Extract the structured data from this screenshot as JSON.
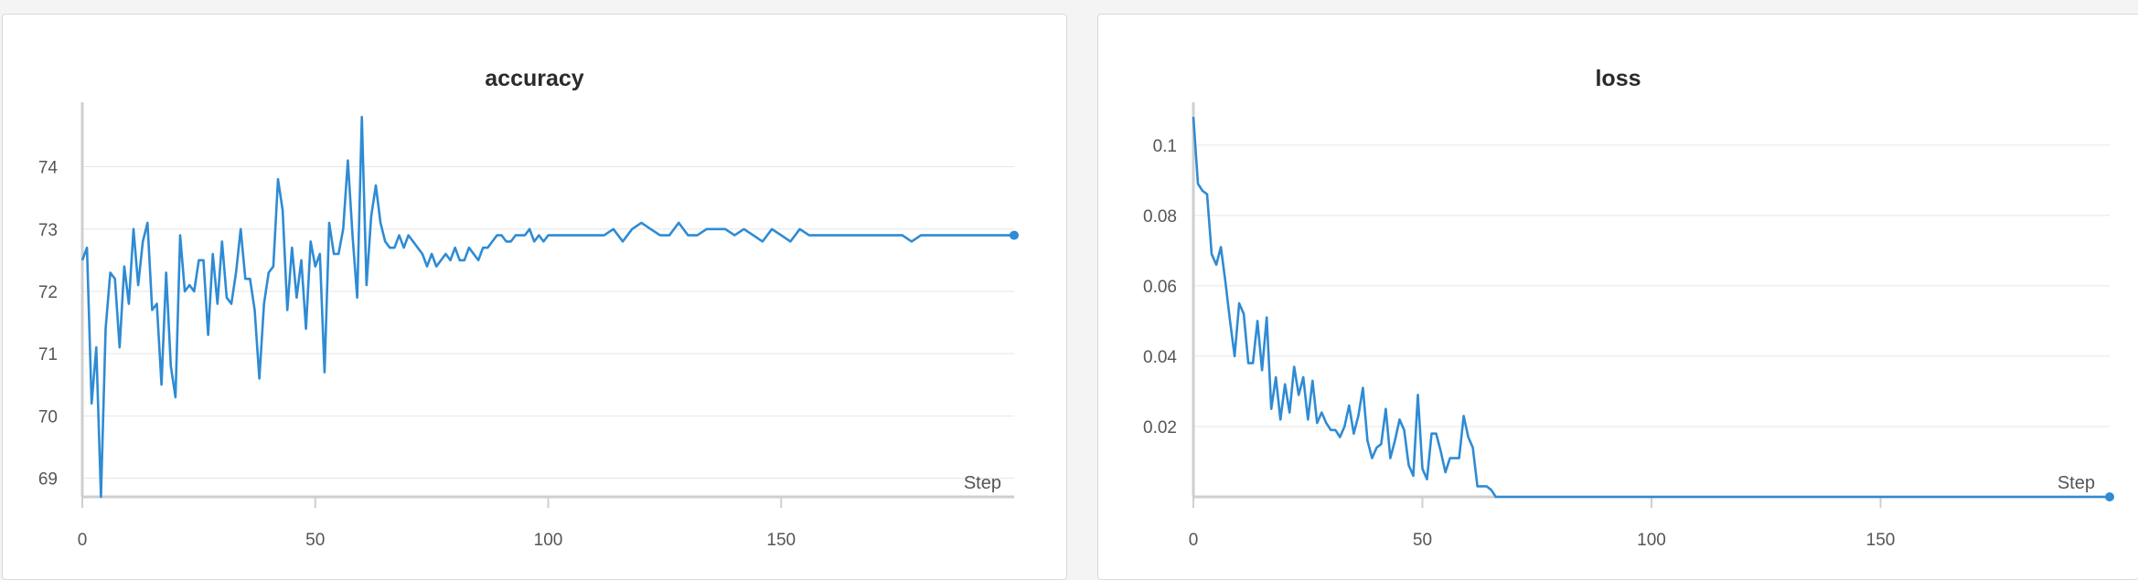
{
  "colors": {
    "line": "#2e8bd4",
    "grid": "#e6e6e6",
    "axis": "#cfcfcf",
    "text": "#555555",
    "title": "#2b2b2b"
  },
  "chart_data": [
    {
      "type": "line",
      "title": "accuracy",
      "xlabel": "Step",
      "ylabel": "",
      "xlim": [
        0,
        200
      ],
      "ylim": [
        68.7,
        74.8
      ],
      "xticks": [
        "0",
        "50",
        "100",
        "150"
      ],
      "yticks": [
        "69",
        "70",
        "71",
        "72",
        "73",
        "74"
      ],
      "grid": true,
      "series": [
        {
          "x": [
            0,
            1,
            2,
            3,
            4,
            5,
            6,
            7,
            8,
            9,
            10,
            11,
            12,
            13,
            14,
            15,
            16,
            17,
            18,
            19,
            20,
            21,
            22,
            23,
            24,
            25,
            26,
            27,
            28,
            29,
            30,
            31,
            32,
            33,
            34,
            35,
            36,
            37,
            38,
            39,
            40,
            41,
            42,
            43,
            44,
            45,
            46,
            47,
            48,
            49,
            50,
            51,
            52,
            53,
            54,
            55,
            56,
            57,
            58,
            59,
            60,
            61,
            62,
            63,
            64,
            65,
            66,
            67,
            68,
            69,
            70,
            71,
            72,
            73,
            74,
            75,
            76,
            77,
            78,
            79,
            80,
            81,
            82,
            83,
            84,
            85,
            86,
            87,
            88,
            89,
            90,
            91,
            92,
            93,
            94,
            95,
            96,
            97,
            98,
            99,
            100,
            102,
            104,
            106,
            108,
            110,
            112,
            114,
            116,
            118,
            120,
            122,
            124,
            126,
            128,
            130,
            132,
            134,
            136,
            138,
            140,
            142,
            144,
            146,
            148,
            150,
            152,
            154,
            156,
            158,
            160,
            162,
            164,
            166,
            168,
            170,
            172,
            174,
            176,
            178,
            180,
            184,
            188,
            192,
            196,
            200
          ],
          "values": [
            72.5,
            72.7,
            70.2,
            71.1,
            68.7,
            71.4,
            72.3,
            72.2,
            71.1,
            72.4,
            71.8,
            73.0,
            72.1,
            72.8,
            73.1,
            71.7,
            71.8,
            70.5,
            72.3,
            70.8,
            70.3,
            72.9,
            72.0,
            72.1,
            72.0,
            72.5,
            72.5,
            71.3,
            72.6,
            71.8,
            72.8,
            71.9,
            71.8,
            72.3,
            73.0,
            72.2,
            72.2,
            71.7,
            70.6,
            71.8,
            72.3,
            72.4,
            73.8,
            73.3,
            71.7,
            72.7,
            71.9,
            72.5,
            71.4,
            72.8,
            72.4,
            72.6,
            70.7,
            73.1,
            72.6,
            72.6,
            73.0,
            74.1,
            72.9,
            71.9,
            74.8,
            72.1,
            73.2,
            73.7,
            73.1,
            72.8,
            72.7,
            72.7,
            72.9,
            72.7,
            72.9,
            72.8,
            72.7,
            72.6,
            72.4,
            72.6,
            72.4,
            72.5,
            72.6,
            72.5,
            72.7,
            72.5,
            72.5,
            72.7,
            72.6,
            72.5,
            72.7,
            72.7,
            72.8,
            72.9,
            72.9,
            72.8,
            72.8,
            72.9,
            72.9,
            72.9,
            73.0,
            72.8,
            72.9,
            72.8,
            72.9,
            72.9,
            72.9,
            72.9,
            72.9,
            72.9,
            72.9,
            73.0,
            72.8,
            73.0,
            73.1,
            73.0,
            72.9,
            72.9,
            73.1,
            72.9,
            72.9,
            73.0,
            73.0,
            73.0,
            72.9,
            73.0,
            72.9,
            72.8,
            73.0,
            72.9,
            72.8,
            73.0,
            72.9,
            72.9,
            72.9,
            72.9,
            72.9,
            72.9,
            72.9,
            72.9,
            72.9,
            72.9,
            72.9,
            72.8,
            72.9,
            72.9,
            72.9,
            72.9,
            72.9,
            72.9
          ]
        }
      ]
    },
    {
      "type": "line",
      "title": "loss",
      "xlabel": "Step",
      "ylabel": "",
      "xlim": [
        0,
        200
      ],
      "ylim": [
        0,
        0.108
      ],
      "xticks": [
        "0",
        "50",
        "100",
        "150"
      ],
      "yticks": [
        "0.02",
        "0.04",
        "0.06",
        "0.08",
        "0.1"
      ],
      "grid": true,
      "series": [
        {
          "x": [
            0,
            1,
            2,
            3,
            4,
            5,
            6,
            7,
            8,
            9,
            10,
            11,
            12,
            13,
            14,
            15,
            16,
            17,
            18,
            19,
            20,
            21,
            22,
            23,
            24,
            25,
            26,
            27,
            28,
            29,
            30,
            31,
            32,
            33,
            34,
            35,
            36,
            37,
            38,
            39,
            40,
            41,
            42,
            43,
            44,
            45,
            46,
            47,
            48,
            49,
            50,
            51,
            52,
            53,
            54,
            55,
            56,
            57,
            58,
            59,
            60,
            61,
            62,
            63,
            64,
            65,
            66,
            67,
            68,
            70,
            80,
            100,
            150,
            200
          ],
          "values": [
            0.108,
            0.089,
            0.087,
            0.086,
            0.069,
            0.066,
            0.071,
            0.061,
            0.05,
            0.04,
            0.055,
            0.052,
            0.038,
            0.038,
            0.05,
            0.036,
            0.051,
            0.025,
            0.034,
            0.022,
            0.032,
            0.024,
            0.037,
            0.029,
            0.034,
            0.022,
            0.033,
            0.021,
            0.024,
            0.021,
            0.019,
            0.019,
            0.017,
            0.02,
            0.026,
            0.018,
            0.023,
            0.031,
            0.016,
            0.011,
            0.014,
            0.015,
            0.025,
            0.011,
            0.016,
            0.022,
            0.019,
            0.009,
            0.006,
            0.029,
            0.008,
            0.005,
            0.018,
            0.018,
            0.013,
            0.007,
            0.011,
            0.011,
            0.011,
            0.023,
            0.017,
            0.014,
            0.003,
            0.003,
            0.003,
            0.002,
            0.0,
            0.0,
            0.0,
            0.0,
            0.0,
            0.0,
            0.0,
            0.0
          ]
        }
      ]
    }
  ]
}
